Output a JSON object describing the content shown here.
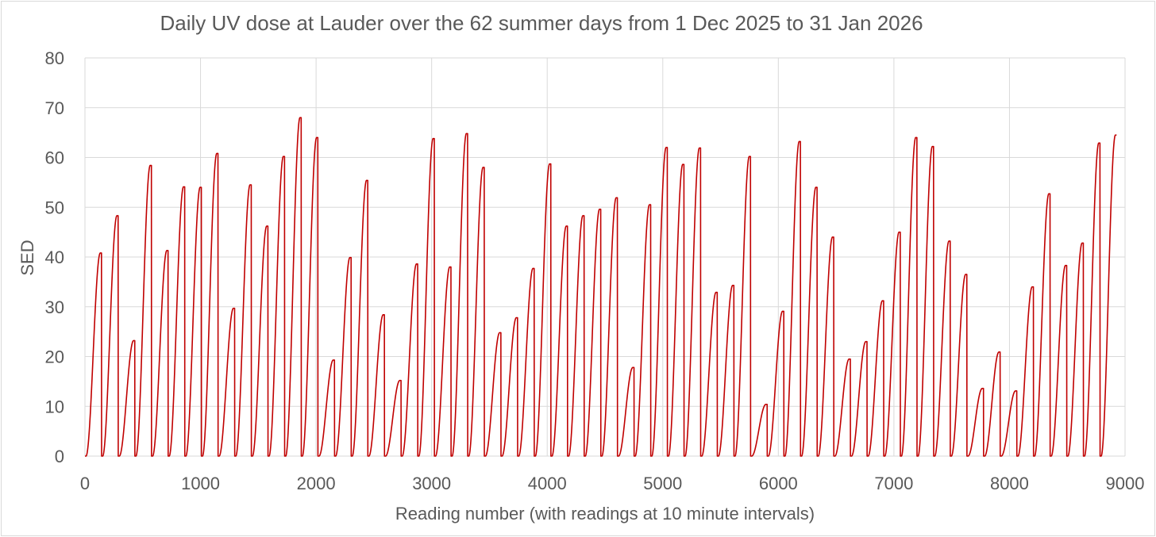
{
  "chart_data": {
    "type": "line",
    "title": "Daily UV dose at Lauder over the 62 summer  days from 1 Dec 2025 to 31 Jan 2026",
    "xlabel": "Reading number (with readings at 10 minute intervals)",
    "ylabel": "SED",
    "xlim": [
      0,
      9000
    ],
    "ylim": [
      0,
      80
    ],
    "xticks": [
      0,
      1000,
      2000,
      3000,
      4000,
      5000,
      6000,
      7000,
      8000,
      9000
    ],
    "yticks": [
      0,
      10,
      20,
      30,
      40,
      50,
      60,
      70,
      80
    ],
    "xtick_labels": [
      "0",
      "1000",
      "2000",
      "3000",
      "4000",
      "5000",
      "6000",
      "7000",
      "8000",
      "9000"
    ],
    "ytick_labels": [
      "0",
      "10",
      "20",
      "30",
      "40",
      "50",
      "60",
      "70",
      "80"
    ],
    "grid": true,
    "legend": "none",
    "readings_per_day": 144,
    "series": [
      {
        "color": "#c00000",
        "day_start_reading": [
          0,
          144,
          288,
          432,
          576,
          720,
          864,
          1008,
          1152,
          1296,
          1440,
          1584,
          1728,
          1872,
          2016,
          2160,
          2304,
          2448,
          2592,
          2736,
          2880,
          3024,
          3168,
          3312,
          3456,
          3600,
          3744,
          3888,
          4032,
          4176,
          4320,
          4464,
          4608,
          4752,
          4896,
          5040,
          5184,
          5328,
          5472,
          5616,
          5760,
          5904,
          6048,
          6192,
          6336,
          6480,
          6624,
          6768,
          6912,
          7056,
          7200,
          7344,
          7488,
          7632,
          7776,
          7920,
          8064,
          8208,
          8352,
          8496,
          8640,
          8784
        ],
        "daily_total_sed": [
          40.8,
          48.3,
          23.2,
          58.4,
          41.3,
          54.1,
          54.0,
          60.8,
          29.7,
          54.5,
          46.2,
          60.2,
          68.0,
          64.0,
          19.3,
          39.9,
          55.4,
          28.4,
          15.2,
          38.6,
          63.8,
          38.0,
          64.8,
          58.0,
          24.8,
          27.8,
          37.7,
          58.7,
          46.2,
          48.3,
          49.6,
          51.9,
          17.8,
          50.5,
          62.0,
          58.6,
          61.9,
          32.9,
          34.3,
          60.2,
          10.4,
          29.1,
          63.2,
          54.0,
          44.0,
          19.5,
          23.0,
          31.2,
          45.0,
          64.0,
          62.2,
          43.2,
          36.5,
          13.6,
          20.9,
          13.1,
          34.0,
          52.7,
          38.3,
          42.8,
          62.9,
          64.5
        ]
      }
    ]
  }
}
